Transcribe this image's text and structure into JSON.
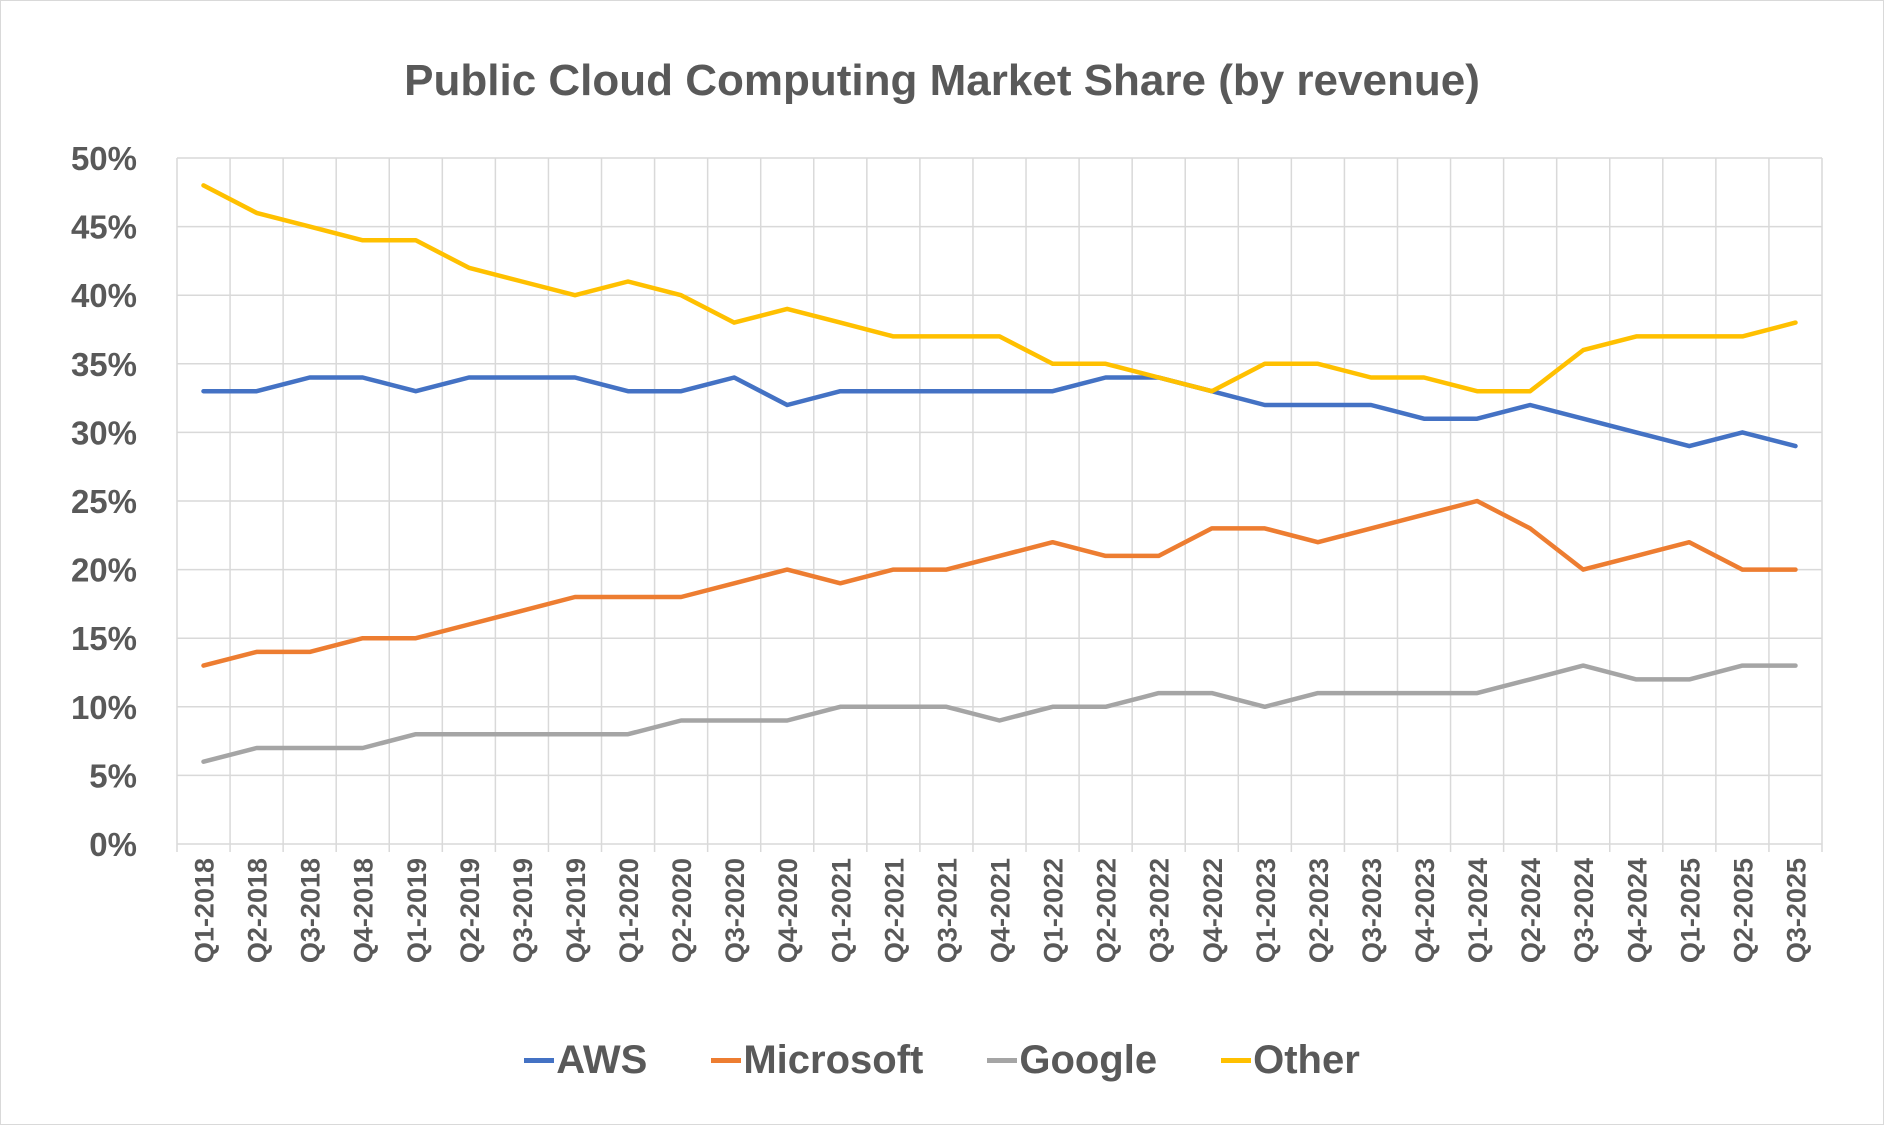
{
  "chart_data": {
    "type": "line",
    "title": "Public Cloud Computing Market Share (by revenue)",
    "xlabel": "",
    "ylabel": "",
    "ylim": [
      0,
      50
    ],
    "yticks": [
      "0%",
      "5%",
      "10%",
      "15%",
      "20%",
      "25%",
      "30%",
      "35%",
      "40%",
      "45%",
      "50%"
    ],
    "grid": true,
    "legend_position": "bottom",
    "categories": [
      "Q1-2018",
      "Q2-2018",
      "Q3-2018",
      "Q4-2018",
      "Q1-2019",
      "Q2-2019",
      "Q3-2019",
      "Q4-2019",
      "Q1-2020",
      "Q2-2020",
      "Q3-2020",
      "Q4-2020",
      "Q1-2021",
      "Q2-2021",
      "Q3-2021",
      "Q4-2021",
      "Q1-2022",
      "Q2-2022",
      "Q3-2022",
      "Q4-2022",
      "Q1-2023",
      "Q2-2023",
      "Q3-2023",
      "Q4-2023",
      "Q1-2024",
      "Q2-2024",
      "Q3-2024",
      "Q4-2024",
      "Q1-2025",
      "Q2-2025",
      "Q3-2025"
    ],
    "series": [
      {
        "name": "AWS",
        "color": "#4472C4",
        "values": [
          33,
          33,
          34,
          34,
          33,
          34,
          34,
          34,
          33,
          33,
          34,
          32,
          33,
          33,
          33,
          33,
          33,
          34,
          34,
          33,
          32,
          32,
          32,
          31,
          31,
          32,
          31,
          30,
          29,
          30,
          29
        ]
      },
      {
        "name": "Microsoft",
        "color": "#ED7D31",
        "values": [
          13,
          14,
          14,
          15,
          15,
          16,
          17,
          18,
          18,
          18,
          19,
          20,
          19,
          20,
          20,
          21,
          22,
          21,
          21,
          23,
          23,
          22,
          23,
          24,
          25,
          23,
          20,
          21,
          22,
          20,
          20
        ]
      },
      {
        "name": "Google",
        "color": "#A5A5A5",
        "values": [
          6,
          7,
          7,
          7,
          8,
          8,
          8,
          8,
          8,
          9,
          9,
          9,
          10,
          10,
          10,
          9,
          10,
          10,
          11,
          11,
          10,
          11,
          11,
          11,
          11,
          12,
          13,
          12,
          12,
          13,
          13
        ]
      },
      {
        "name": "Other",
        "color": "#FFC000",
        "values": [
          48,
          46,
          45,
          44,
          44,
          42,
          41,
          40,
          41,
          40,
          38,
          39,
          38,
          37,
          37,
          37,
          35,
          35,
          34,
          33,
          35,
          35,
          34,
          34,
          33,
          33,
          36,
          37,
          37,
          37,
          38
        ]
      }
    ]
  }
}
